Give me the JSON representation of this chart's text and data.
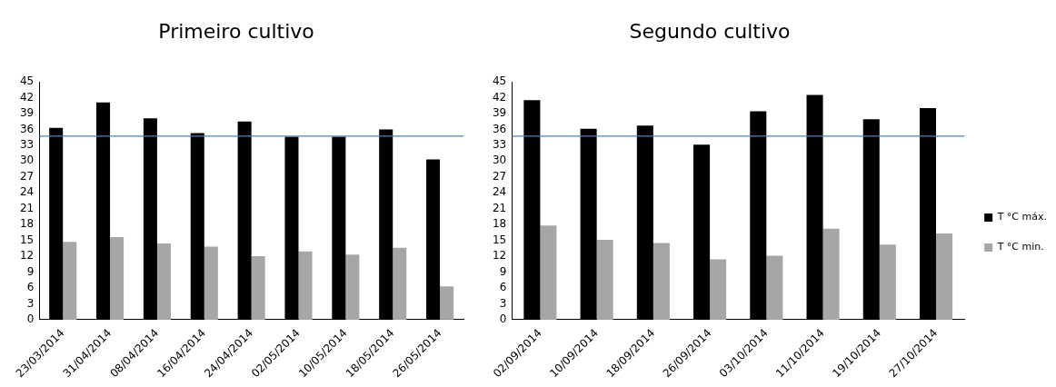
{
  "chart_data": [
    {
      "type": "bar",
      "title": "Primeiro cultivo",
      "categories": [
        "23/03/2014",
        "31/04/2014",
        "08/04/2014",
        "16/04/2014",
        "24/04/2014",
        "02/05/2014",
        "10/05/2014",
        "18/05/2014",
        "26/05/2014"
      ],
      "series": [
        {
          "color": "#000000",
          "values": [
            36.3,
            41.1,
            38.1,
            35.3,
            37.5,
            34.6,
            34.6,
            36.0,
            30.3
          ]
        },
        {
          "color": "#a6a6a6",
          "values": [
            14.7,
            15.6,
            14.4,
            13.8,
            12.0,
            12.9,
            12.3,
            13.6,
            6.3
          ]
        }
      ],
      "ylim": [
        0,
        45
      ],
      "yticks": [
        0,
        3,
        6,
        9,
        12,
        15,
        18,
        21,
        24,
        27,
        30,
        33,
        36,
        39,
        42,
        45
      ],
      "grid": false,
      "legend": false,
      "ref_lines": [
        {
          "axis": "y",
          "value": 34.7,
          "color": "#4f81bd"
        }
      ]
    },
    {
      "type": "bar",
      "title": "Segundo cultivo",
      "categories": [
        "02/09/2014",
        "10/09/2014",
        "18/09/2014",
        "26/09/2014",
        "03/10/2014",
        "11/10/2014",
        "19/10/2014",
        "27/10/2014"
      ],
      "series": [
        {
          "name": "T °C máx.",
          "color": "#000000",
          "values": [
            41.5,
            36.1,
            36.7,
            33.1,
            39.4,
            42.5,
            37.9,
            40.0
          ]
        },
        {
          "name": "T °C min.",
          "color": "#a6a6a6",
          "values": [
            17.8,
            15.1,
            14.5,
            11.4,
            12.1,
            17.2,
            14.2,
            16.3
          ]
        }
      ],
      "ylim": [
        0,
        45
      ],
      "yticks": [
        0,
        3,
        6,
        9,
        12,
        15,
        18,
        21,
        24,
        27,
        30,
        33,
        36,
        39,
        42,
        45
      ],
      "grid": false,
      "legend": "right",
      "ref_lines": [
        {
          "axis": "y",
          "value": 34.7,
          "color": "#4f81bd"
        }
      ]
    }
  ]
}
